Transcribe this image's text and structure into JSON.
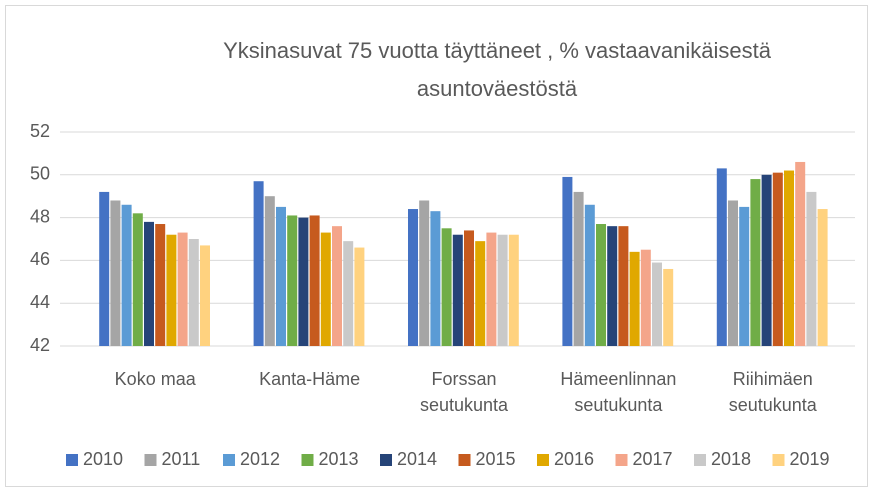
{
  "chart_data": {
    "type": "bar",
    "title": "Yksinasuvat 75 vuotta täyttäneet , % vastaavanikäisestä asuntoväestöstä",
    "categories": [
      "Koko maa",
      "Kanta-Häme",
      "Forssan seutukunta",
      "Hämeenlinnan seutukunta",
      "Riihimäen seutukunta"
    ],
    "series": [
      {
        "name": "2010",
        "color": "#4472c4",
        "values": [
          49.2,
          49.7,
          48.4,
          49.9,
          50.3
        ]
      },
      {
        "name": "2011",
        "color": "#a5a5a5",
        "values": [
          48.8,
          49.0,
          48.8,
          49.2,
          48.8
        ]
      },
      {
        "name": "2012",
        "color": "#5b9bd5",
        "values": [
          48.6,
          48.5,
          48.3,
          48.6,
          48.5
        ]
      },
      {
        "name": "2013",
        "color": "#70ad47",
        "values": [
          48.2,
          48.1,
          47.5,
          47.7,
          49.8
        ]
      },
      {
        "name": "2014",
        "color": "#264478",
        "values": [
          47.8,
          48.0,
          47.2,
          47.6,
          50.0
        ]
      },
      {
        "name": "2015",
        "color": "#c65a1e",
        "values": [
          47.7,
          48.1,
          47.4,
          47.6,
          50.1
        ]
      },
      {
        "name": "2016",
        "color": "#e0a800",
        "values": [
          47.2,
          47.3,
          46.9,
          46.4,
          50.2
        ]
      },
      {
        "name": "2017",
        "color": "#f4a58a",
        "values": [
          47.3,
          47.6,
          47.3,
          46.5,
          50.6
        ]
      },
      {
        "name": "2018",
        "color": "#c9c9c9",
        "values": [
          47.0,
          46.9,
          47.2,
          45.9,
          49.2
        ]
      },
      {
        "name": "2019",
        "color": "#ffd27f",
        "values": [
          46.7,
          46.6,
          47.2,
          45.6,
          48.4
        ]
      }
    ],
    "ylim": [
      42,
      52
    ],
    "yticks": [
      42,
      44,
      46,
      48,
      50,
      52
    ],
    "grid": true,
    "legend": "bottom"
  }
}
